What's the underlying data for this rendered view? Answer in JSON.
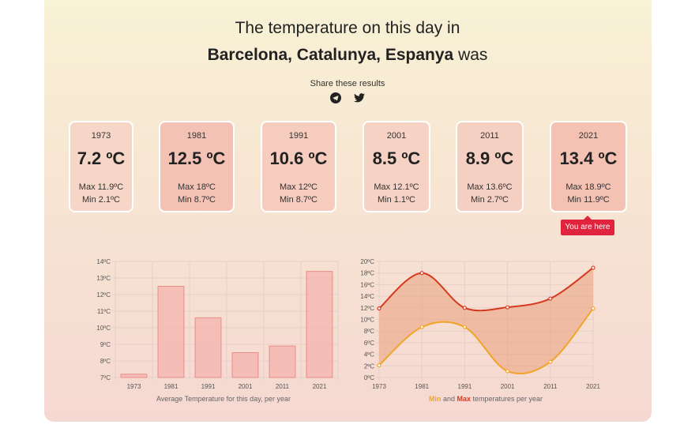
{
  "header": {
    "title_line1": "The temperature on this day in",
    "city": "Barcelona, Catalunya, Espanya",
    "was": "was",
    "share_label": "Share these results",
    "share_icons": [
      "telegram-icon",
      "twitter-icon"
    ]
  },
  "cards": [
    {
      "year": "1973",
      "avg": "7.2 ºC",
      "max": "Max 11.9ºC",
      "min": "Min 2.1ºC"
    },
    {
      "year": "1981",
      "avg": "12.5 ºC",
      "max": "Max 18ºC",
      "min": "Min 8.7ºC"
    },
    {
      "year": "1991",
      "avg": "10.6 ºC",
      "max": "Max 12ºC",
      "min": "Min 8.7ºC"
    },
    {
      "year": "2001",
      "avg": "8.5 ºC",
      "max": "Max 12.1ºC",
      "min": "Min 1.1ºC"
    },
    {
      "year": "2011",
      "avg": "8.9 ºC",
      "max": "Max 13.6ºC",
      "min": "Min 2.7ºC"
    },
    {
      "year": "2021",
      "avg": "13.4 ºC",
      "max": "Max 18.9ºC",
      "min": "Min 11.9ºC"
    }
  ],
  "you_are_here": "You are here",
  "colors": {
    "bar": "#f4b3ad",
    "max_line": "#d43a1f",
    "min_line": "#f0a52a",
    "band": "#e9a07c",
    "alert": "#e0243d"
  },
  "chart_data": [
    {
      "type": "bar",
      "categories": [
        "1973",
        "1981",
        "1991",
        "2001",
        "2011",
        "2021"
      ],
      "values": [
        7.2,
        12.5,
        10.6,
        8.5,
        8.9,
        13.4
      ],
      "ylim": [
        7,
        14
      ],
      "yticks": [
        "7ºC",
        "8ºC",
        "9ºC",
        "10ºC",
        "11ºC",
        "12ºC",
        "13ºC",
        "14ºC"
      ],
      "title": "Average Temperature for this day, per year",
      "grid": true
    },
    {
      "type": "line",
      "categories": [
        "1973",
        "1981",
        "1991",
        "2001",
        "2011",
        "2021"
      ],
      "series": [
        {
          "name": "Max",
          "values": [
            11.9,
            18,
            12,
            12.1,
            13.6,
            18.9
          ]
        },
        {
          "name": "Min",
          "values": [
            2.1,
            8.7,
            8.7,
            1.1,
            2.7,
            11.9
          ]
        }
      ],
      "ylim": [
        0,
        20
      ],
      "yticks": [
        "0ºC",
        "2ºC",
        "4ºC",
        "6ºC",
        "8ºC",
        "10ºC",
        "12ºC",
        "14ºC",
        "16ºC",
        "18ºC",
        "20ºC"
      ],
      "title_min": "Min",
      "title_and": "and",
      "title_max": "Max",
      "title_rest": "temperatures per year",
      "grid": true
    }
  ]
}
